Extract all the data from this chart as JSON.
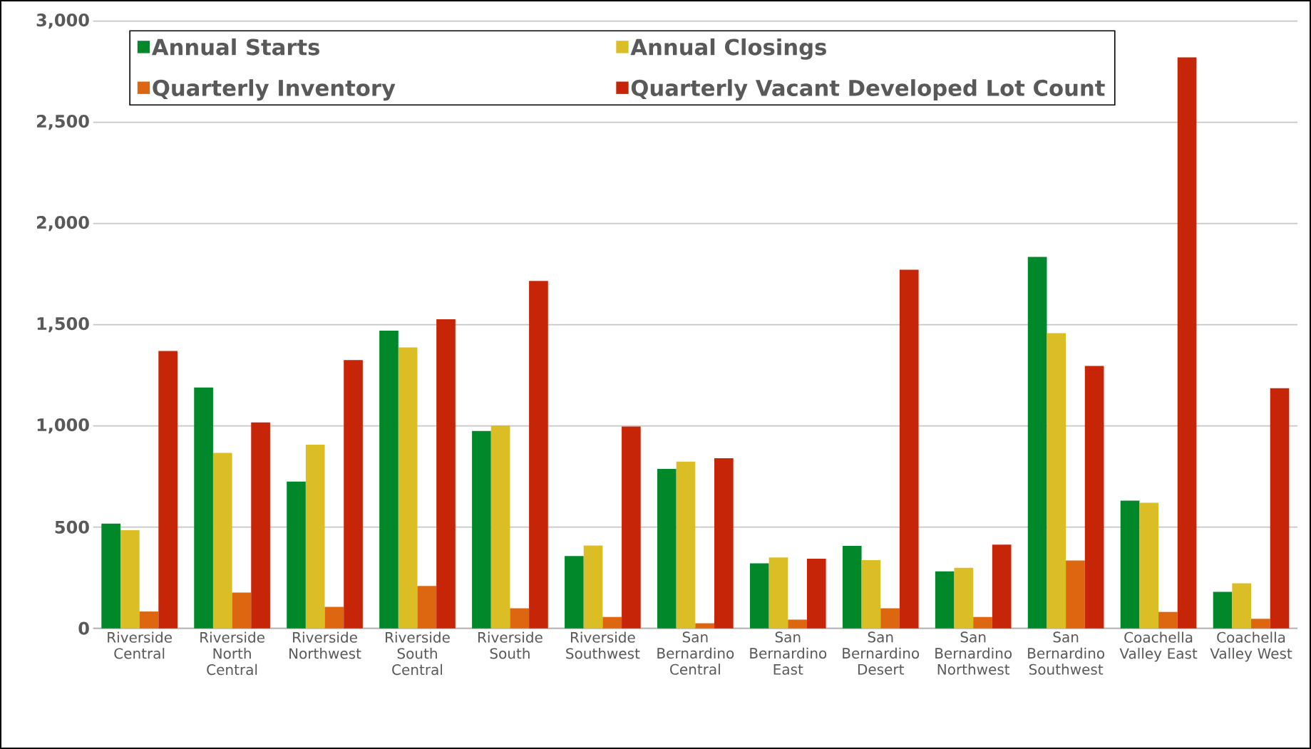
{
  "chart_data": {
    "type": "bar",
    "categories": [
      "Riverside Central",
      "Riverside North Central",
      "Riverside Northwest",
      "Riverside South Central",
      "Riverside South",
      "Riverside Southwest",
      "San Bernardino Central",
      "San Bernardino East",
      "San Bernardino Desert",
      "San Bernardino Northwest",
      "San Bernardino Southwest",
      "Coachella Valley East",
      "Coachella Valley West"
    ],
    "series": [
      {
        "name": "Annual Starts",
        "color": "#00882b",
        "values": [
          517,
          1190,
          725,
          1471,
          975,
          357,
          788,
          321,
          407,
          281,
          1835,
          631,
          180
        ]
      },
      {
        "name": "Annual Closings",
        "color": "#dbbd25",
        "values": [
          485,
          867,
          907,
          1388,
          1002,
          409,
          824,
          350,
          337,
          299,
          1458,
          620,
          222
        ]
      },
      {
        "name": "Quarterly Inventory",
        "color": "#dd6611",
        "values": [
          83,
          177,
          106,
          209,
          99,
          56,
          25,
          43,
          99,
          56,
          335,
          81,
          47
        ]
      },
      {
        "name": "Quarterly Vacant Developed Lot Count",
        "color": "#c72508",
        "values": [
          1370,
          1017,
          1325,
          1527,
          1716,
          997,
          840,
          344,
          1772,
          413,
          1296,
          2821,
          1186
        ]
      }
    ],
    "ylim": [
      0,
      3000
    ],
    "yticks": [
      {
        "value": 0,
        "label": "0"
      },
      {
        "value": 500,
        "label": "500"
      },
      {
        "value": 1000,
        "label": "1,000"
      },
      {
        "value": 1500,
        "label": "1,500"
      },
      {
        "value": 2000,
        "label": "2,000"
      },
      {
        "value": 2500,
        "label": "2,500"
      },
      {
        "value": 3000,
        "label": "3,000"
      }
    ],
    "grid": "y",
    "legend": "top"
  }
}
